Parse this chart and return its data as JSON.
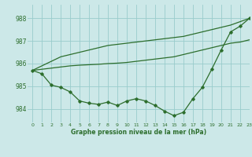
{
  "title": "Graphe pression niveau de la mer (hPa)",
  "bg_color": "#cce8e8",
  "grid_color": "#99cccc",
  "line_color": "#2d6e2d",
  "xlim": [
    -0.5,
    23
  ],
  "ylim": [
    983.4,
    988.6
  ],
  "yticks": [
    984,
    985,
    986,
    987,
    988
  ],
  "xticks": [
    0,
    1,
    2,
    3,
    4,
    5,
    6,
    7,
    8,
    9,
    10,
    11,
    12,
    13,
    14,
    15,
    16,
    17,
    18,
    19,
    20,
    21,
    22,
    23
  ],
  "line_marked": [
    985.7,
    985.55,
    985.05,
    984.95,
    984.75,
    984.35,
    984.25,
    984.2,
    984.3,
    984.15,
    984.35,
    984.45,
    984.35,
    984.15,
    983.9,
    983.7,
    983.85,
    984.45,
    984.95,
    985.75,
    986.6,
    987.4,
    987.65,
    988.0
  ],
  "line_upper": [
    985.7,
    985.9,
    986.1,
    986.3,
    986.4,
    986.5,
    986.6,
    986.7,
    986.8,
    986.85,
    986.9,
    986.95,
    987.0,
    987.05,
    987.1,
    987.15,
    987.2,
    987.3,
    987.4,
    987.5,
    987.6,
    987.7,
    987.85,
    988.0
  ],
  "line_lower": [
    985.7,
    985.75,
    985.8,
    985.85,
    985.9,
    985.93,
    985.95,
    985.97,
    986.0,
    986.02,
    986.05,
    986.1,
    986.15,
    986.2,
    986.25,
    986.3,
    986.4,
    986.5,
    986.6,
    986.7,
    986.8,
    986.9,
    986.95,
    987.05
  ]
}
